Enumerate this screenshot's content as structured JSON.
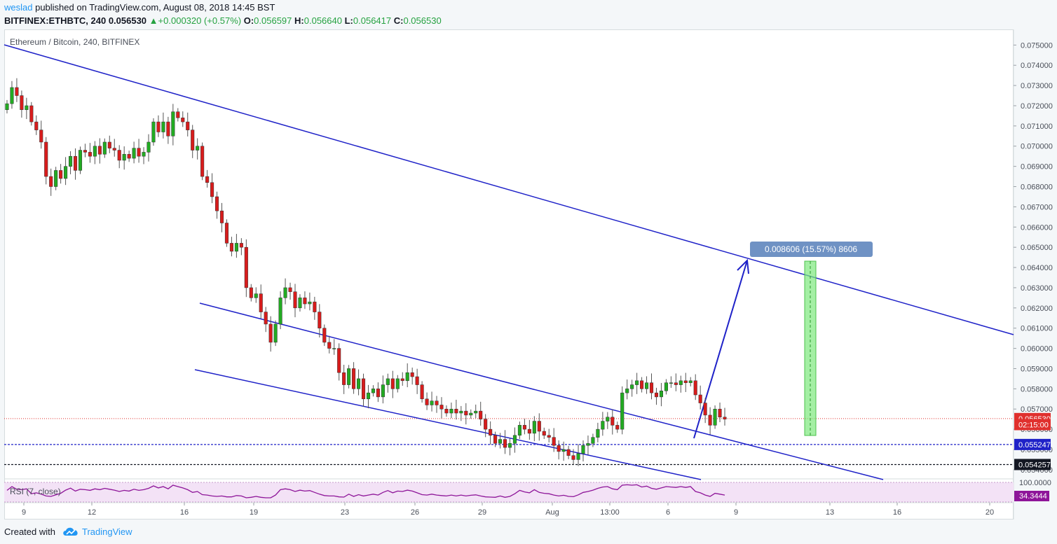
{
  "header": {
    "author": "weslad",
    "published_text": "published on TradingView.com, August 08, 2018 14:45 BST",
    "symbol": "BITFINEX:ETHBTC, 240",
    "last": "0.056530",
    "change": "+0.000320 (+0.57%)",
    "open_label": "O:",
    "open": "0.056597",
    "high_label": "H:",
    "high": "0.056640",
    "low_label": "L:",
    "low": "0.056417",
    "close_label": "C:",
    "close": "0.056530"
  },
  "footer": {
    "created_with": "Created with",
    "brand": "TradingView"
  },
  "colors": {
    "up": "#22ab22",
    "down": "#d81c1c",
    "channel": "#1f22c8",
    "rsi": "#8e1599",
    "rsi_band": "#f3e2f6",
    "box_green": "#7ee87e",
    "label_bg": "#6f92c4"
  },
  "chart_data": {
    "type": "candlestick",
    "title": "Ethereum / Bitcoin, 240, BITFINEX",
    "ylim": [
      0.0539,
      0.0758
    ],
    "y_ticks": [
      "0.075000",
      "0.074000",
      "0.073000",
      "0.072000",
      "0.071000",
      "0.070000",
      "0.069000",
      "0.068000",
      "0.067000",
      "0.066000",
      "0.065000",
      "0.064000",
      "0.063000",
      "0.062000",
      "0.061000",
      "0.060000",
      "0.059000",
      "0.058000",
      "0.057000",
      "0.056000",
      "0.055000",
      "0.054000"
    ],
    "x_ticks": [
      "9",
      "12",
      "16",
      "19",
      "23",
      "26",
      "29",
      "Aug",
      "13:00",
      "6",
      "9",
      "13",
      "16",
      "20"
    ],
    "price_labels": [
      {
        "value": 0.05653,
        "text": "0.056530",
        "bg": "#e0302d"
      },
      {
        "value": 0.05623,
        "text": "02:15:00",
        "bg": "#e0302d"
      },
      {
        "value": 0.055247,
        "text": "0.055247",
        "bg": "#1f22c8"
      },
      {
        "value": 0.054257,
        "text": "0.054257",
        "bg": "#131722"
      }
    ],
    "horizontal_lines": [
      {
        "value": 0.05653,
        "style": "dotted",
        "color": "#e0302d"
      },
      {
        "value": 0.055247,
        "style": "dashed",
        "color": "#1f22c8"
      },
      {
        "value": 0.054257,
        "style": "dashed",
        "color": "#131722"
      }
    ],
    "measure_label": "0.008606 (15.57%) 8606",
    "closes": [
      0.0721,
      0.0729,
      0.0725,
      0.0718,
      0.072,
      0.0712,
      0.0708,
      0.0702,
      0.0685,
      0.068,
      0.0688,
      0.0684,
      0.069,
      0.0695,
      0.0688,
      0.0698,
      0.0697,
      0.0695,
      0.07,
      0.0696,
      0.0702,
      0.0699,
      0.0698,
      0.0693,
      0.0696,
      0.0694,
      0.0699,
      0.0695,
      0.0697,
      0.0702,
      0.0712,
      0.0707,
      0.0712,
      0.0705,
      0.0717,
      0.0714,
      0.0712,
      0.0708,
      0.0698,
      0.07,
      0.0685,
      0.0682,
      0.0675,
      0.0668,
      0.0662,
      0.0652,
      0.0648,
      0.0652,
      0.065,
      0.063,
      0.0625,
      0.0627,
      0.0618,
      0.0612,
      0.0603,
      0.0612,
      0.0625,
      0.063,
      0.0628,
      0.062,
      0.0625,
      0.0622,
      0.0623,
      0.0618,
      0.061,
      0.0603,
      0.06,
      0.06,
      0.0588,
      0.0582,
      0.059,
      0.058,
      0.0585,
      0.0575,
      0.0578,
      0.058,
      0.0576,
      0.0582,
      0.0585,
      0.058,
      0.0585,
      0.0584,
      0.0588,
      0.0586,
      0.0582,
      0.0575,
      0.0572,
      0.0574,
      0.0572,
      0.057,
      0.0568,
      0.057,
      0.0568,
      0.0569,
      0.0567,
      0.0568,
      0.0569,
      0.0565,
      0.056,
      0.0557,
      0.0553,
      0.0555,
      0.0551,
      0.0553,
      0.0557,
      0.0562,
      0.056,
      0.0558,
      0.0564,
      0.0559,
      0.0557,
      0.0556,
      0.0552,
      0.0549,
      0.055,
      0.0547,
      0.0545,
      0.0548,
      0.0552,
      0.0553,
      0.0556,
      0.056,
      0.0564,
      0.0566,
      0.0562,
      0.056,
      0.0578,
      0.058,
      0.0582,
      0.0584,
      0.058,
      0.0583,
      0.0578,
      0.0576,
      0.0579,
      0.0583,
      0.0583,
      0.0582,
      0.0584,
      0.0583,
      0.0584,
      0.0577,
      0.0573,
      0.0567,
      0.0562,
      0.057,
      0.0566,
      0.0565
    ],
    "rsi": {
      "label": "RSI (7, close)",
      "value_label": "34.3444",
      "levels": [
        "100.0000",
        "34.3444"
      ],
      "band": [
        30,
        70
      ],
      "values": [
        55,
        72,
        60,
        58,
        62,
        40,
        44,
        38,
        30,
        28,
        35,
        42,
        56,
        65,
        52,
        60,
        58,
        55,
        62,
        58,
        64,
        60,
        56,
        50,
        55,
        52,
        60,
        55,
        58,
        64,
        75,
        66,
        72,
        62,
        78,
        72,
        66,
        58,
        46,
        50,
        36,
        34,
        30,
        28,
        30,
        26,
        26,
        32,
        30,
        22,
        24,
        28,
        24,
        22,
        22,
        34,
        58,
        62,
        58,
        50,
        56,
        52,
        54,
        46,
        38,
        32,
        30,
        30,
        26,
        25,
        38,
        28,
        36,
        30,
        34,
        38,
        34,
        46,
        54,
        44,
        52,
        50,
        56,
        52,
        44,
        36,
        34,
        38,
        34,
        32,
        30,
        34,
        30,
        34,
        30,
        33,
        35,
        30,
        26,
        25,
        24,
        30,
        24,
        28,
        40,
        55,
        48,
        44,
        58,
        46,
        42,
        40,
        34,
        30,
        33,
        28,
        27,
        35,
        46,
        50,
        56,
        64,
        70,
        72,
        62,
        58,
        78,
        80,
        78,
        80,
        70,
        74,
        64,
        60,
        66,
        72,
        70,
        68,
        72,
        68,
        72,
        50,
        44,
        34,
        28,
        42,
        38,
        34
      ]
    }
  }
}
